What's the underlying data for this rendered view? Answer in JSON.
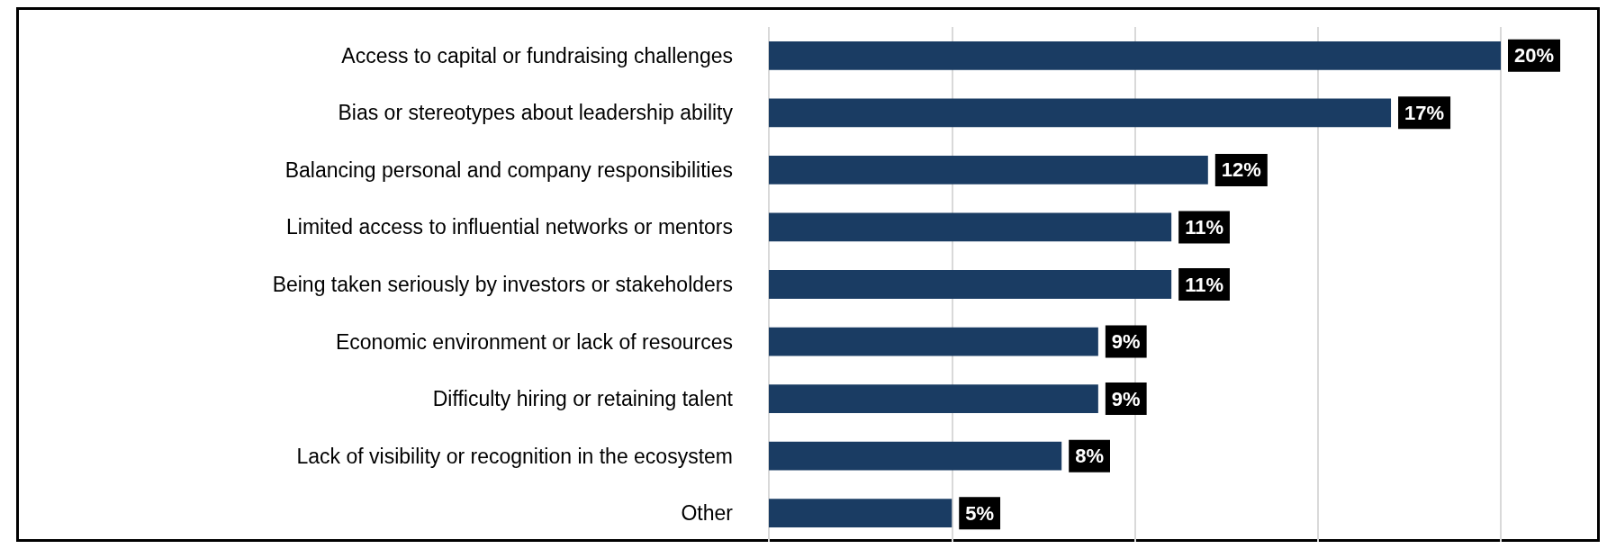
{
  "chart_data": {
    "type": "bar",
    "orientation": "horizontal",
    "categories": [
      "Access to capital or fundraising challenges",
      "Bias or stereotypes about leadership ability",
      "Balancing personal and company responsibilities",
      "Limited access to influential networks or mentors",
      "Being taken seriously by investors or stakeholders",
      "Economic environment or lack of resources",
      "Difficulty hiring or retaining talent",
      "Lack of visibility or recognition in the ecosystem",
      "Other"
    ],
    "values": [
      20,
      17,
      12,
      11,
      11,
      9,
      9,
      8,
      5
    ],
    "value_labels": [
      "20%",
      "17%",
      "12%",
      "11%",
      "11%",
      "9%",
      "9%",
      "8%",
      "5%"
    ],
    "color": "#1a3c63",
    "xticks": [
      {
        "value": 0,
        "label": null
      },
      {
        "value": 5,
        "label": null
      },
      {
        "value": 10,
        "label": null
      },
      {
        "value": 15,
        "label": null
      },
      {
        "value": 20,
        "label": null
      }
    ],
    "tick_labels": "y",
    "grid": "x"
  }
}
